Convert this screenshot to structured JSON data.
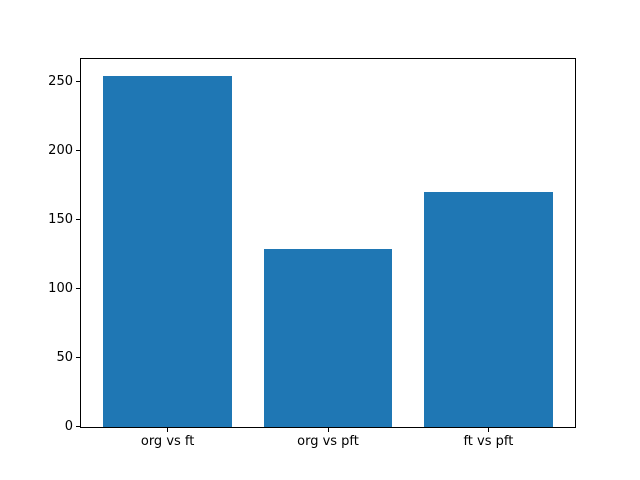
{
  "chart_data": {
    "type": "bar",
    "title": "",
    "xlabel": "",
    "ylabel": "",
    "categories": [
      "org vs ft",
      "org vs pft",
      "ft vs pft"
    ],
    "values": [
      254,
      129,
      170
    ],
    "yticks": [
      0,
      50,
      100,
      150,
      200,
      250
    ],
    "ylim": [
      0,
      266.7
    ],
    "xlim": [
      -0.54,
      2.54
    ],
    "bar_width": 0.8,
    "bar_color": "#1f77b4",
    "spine_color": "#000000",
    "tick_label_color": "#000000",
    "background_color": "#ffffff",
    "grid": false,
    "legend": false
  }
}
